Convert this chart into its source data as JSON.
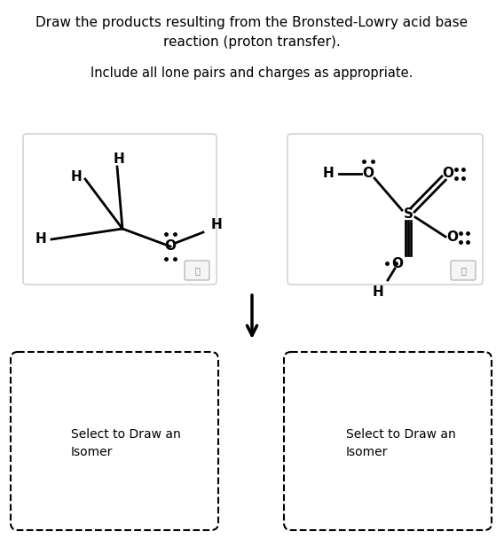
{
  "title_line1": "Draw the products resulting from the Bronsted-Lowry acid base",
  "title_line2": "reaction (proton transfer).",
  "subtitle": "Include all lone pairs and charges as appropriate.",
  "bg_color": "#ffffff",
  "fig_w": 5.68,
  "fig_h": 6.08,
  "dpi": 100
}
